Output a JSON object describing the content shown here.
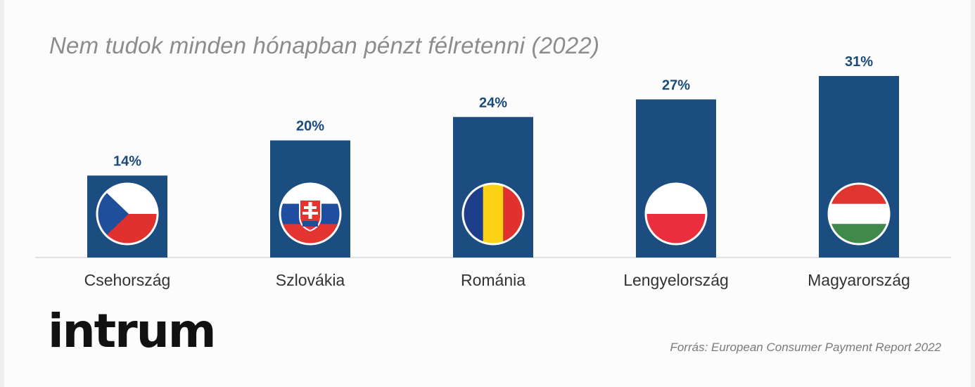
{
  "chart_data": {
    "type": "bar",
    "title": "Nem tudok minden hónapban pénzt félretenni (2022)",
    "categories": [
      "Csehország",
      "Szlovákia",
      "Románia",
      "Lengyelország",
      "Magyarország"
    ],
    "values": [
      14,
      20,
      24,
      27,
      31
    ],
    "value_labels": [
      "14%",
      "20%",
      "24%",
      "27%",
      "31%"
    ],
    "unit": "%",
    "ylim": [
      0,
      31
    ],
    "grid": false,
    "bar_color": "#1c4d80",
    "flags": [
      "czech-flag-icon",
      "slovak-flag-icon",
      "romanian-flag-icon",
      "polish-flag-icon",
      "hungarian-flag-icon"
    ]
  },
  "branding": {
    "logo_text": "intrum"
  },
  "source": "Forrás: European Consumer Payment Report 2022",
  "colors": {
    "accent": "#1c4d80",
    "label": "#1a4a7a"
  }
}
